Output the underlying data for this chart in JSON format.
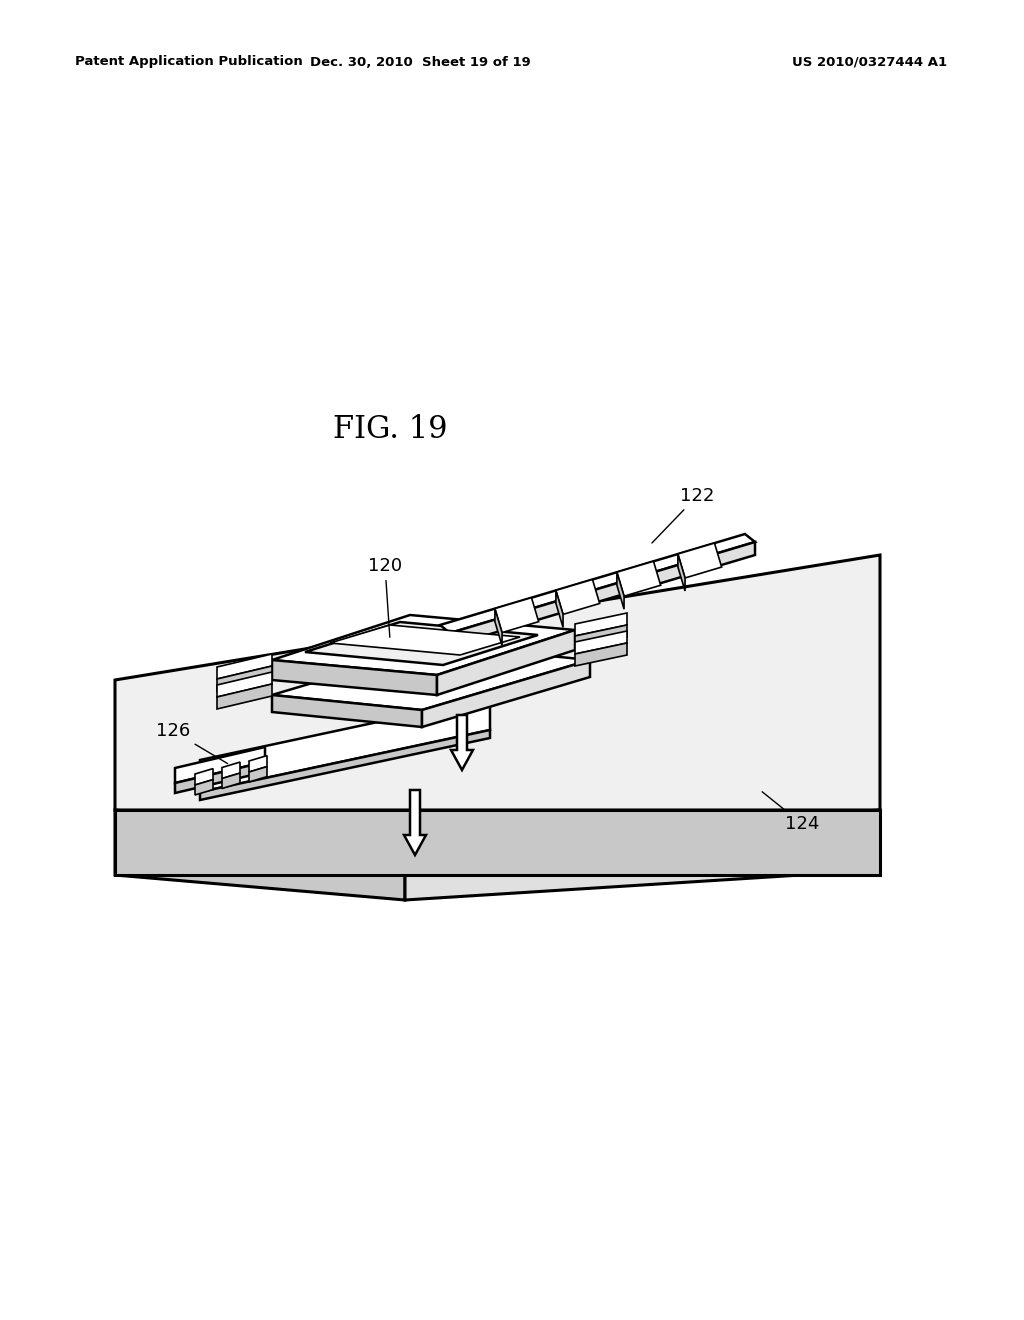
{
  "background_color": "#ffffff",
  "line_color": "#000000",
  "header_left": "Patent Application Publication",
  "header_center": "Dec. 30, 2010  Sheet 19 of 19",
  "header_right": "US 2010/0327444 A1",
  "fig_label": "FIG. 19",
  "lw": 1.8,
  "lw_thin": 1.2,
  "lw_thick": 2.2,
  "fc_white": "#ffffff",
  "fc_light": "#f0f0f0",
  "fc_mid": "#e0e0e0",
  "fc_dark": "#c8c8c8"
}
